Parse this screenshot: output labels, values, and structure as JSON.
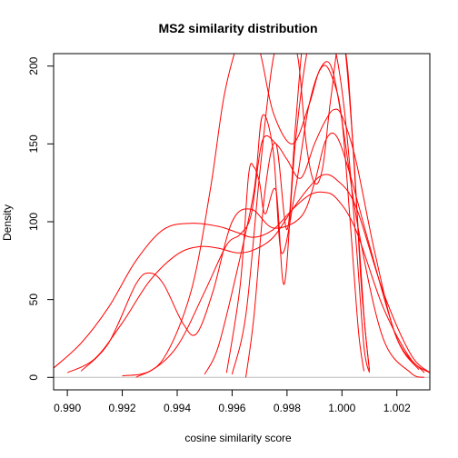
{
  "chart_data": {
    "type": "line",
    "title": "MS2 similarity distribution",
    "xlabel": "cosine similarity score",
    "ylabel": "Density",
    "xlim": [
      0.9895,
      1.0032
    ],
    "ylim": [
      -8,
      208
    ],
    "x_ticks": [
      0.99,
      0.992,
      0.994,
      0.996,
      0.998,
      1.0,
      1.002
    ],
    "x_tick_labels": [
      "0.990",
      "0.992",
      "0.994",
      "0.996",
      "0.998",
      "1.000",
      "1.002"
    ],
    "y_ticks": [
      0,
      50,
      100,
      150,
      200
    ],
    "y_tick_labels": [
      "0",
      "50",
      "100",
      "150",
      "200"
    ],
    "baseline": 0,
    "series_color": "#ff0000",
    "baseline_color": "#bebebe",
    "series": [
      {
        "x": [
          0.9895,
          0.9905,
          0.9915,
          0.9925,
          0.9935,
          0.9945,
          0.9955,
          0.9962,
          0.9968,
          0.9975,
          0.9982,
          0.9988,
          0.9993,
          0.9998,
          1.0005,
          1.0015,
          1.0025,
          1.0032
        ],
        "y": [
          6,
          22,
          45,
          75,
          95,
          99,
          97,
          93,
          90,
          95,
          108,
          117,
          119,
          115,
          95,
          45,
          12,
          3
        ]
      },
      {
        "x": [
          0.99,
          0.991,
          0.992,
          0.993,
          0.994,
          0.9948,
          0.9955,
          0.9962,
          0.9968,
          0.9975,
          0.9982,
          0.9988,
          0.9993,
          0.9998,
          1.0005,
          1.0015,
          1.0025,
          1.0032
        ],
        "y": [
          3,
          12,
          35,
          62,
          79,
          84,
          83,
          80,
          82,
          90,
          108,
          122,
          130,
          127,
          110,
          55,
          15,
          3
        ]
      },
      {
        "x": [
          0.9905,
          0.9915,
          0.9925,
          0.993,
          0.9935,
          0.9942,
          0.9947,
          0.9953,
          0.996,
          0.9967,
          0.9975,
          0.9985,
          0.999,
          0.9994,
          0.9998,
          1.0003,
          1.001,
          1.002,
          1.0028
        ],
        "y": [
          4,
          22,
          60,
          67,
          60,
          35,
          28,
          55,
          100,
          108,
          96,
          103,
          125,
          152,
          155,
          130,
          85,
          25,
          5
        ]
      },
      {
        "x": [
          0.992,
          0.993,
          0.994,
          0.995,
          0.9958,
          0.9963,
          0.9967,
          0.9971,
          0.9976,
          0.998,
          0.9985,
          0.999,
          0.9994,
          0.9997,
          1.0,
          1.0005,
          1.0012,
          1.002,
          1.003
        ],
        "y": [
          1,
          4,
          20,
          55,
          85,
          92,
          105,
          152,
          150,
          140,
          128,
          150,
          165,
          172,
          168,
          140,
          80,
          25,
          3
        ]
      },
      {
        "x": [
          0.9925,
          0.9935,
          0.9945,
          0.9952,
          0.9957,
          0.9962,
          0.9965,
          0.997,
          0.9975,
          0.9982,
          0.9988,
          0.9992,
          0.9996,
          1.0,
          1.0006,
          1.0015,
          1.0025,
          1.003
        ],
        "y": [
          0,
          12,
          55,
          120,
          180,
          215,
          225,
          210,
          170,
          150,
          175,
          198,
          200,
          165,
          95,
          25,
          3,
          0
        ]
      },
      {
        "x": [
          0.995,
          0.9955,
          0.9962,
          0.9968,
          0.9971,
          0.9975,
          0.9978,
          0.9983,
          0.9988,
          0.9993,
          0.9997,
          1.0,
          1.0003,
          1.0006,
          1.0008
        ],
        "y": [
          2,
          20,
          70,
          120,
          168,
          145,
          80,
          120,
          175,
          200,
          190,
          165,
          100,
          30,
          4
        ]
      },
      {
        "x": [
          0.9958,
          0.9963,
          0.9966,
          0.9968,
          0.997,
          0.9972,
          0.9976,
          0.9979,
          0.9983,
          0.9988,
          0.9993,
          0.9997,
          1.0001,
          1.0005,
          1.0008,
          1.001
        ],
        "y": [
          3,
          60,
          130,
          135,
          125,
          105,
          120,
          60,
          150,
          215,
          225,
          215,
          170,
          90,
          20,
          3
        ]
      },
      {
        "x": [
          0.996,
          0.9965,
          0.997,
          0.9975,
          0.998,
          0.9984,
          0.9987,
          0.999,
          0.9993,
          0.9996,
          1.0,
          1.0004,
          1.0007,
          1.001
        ],
        "y": [
          2,
          40,
          130,
          205,
          225,
          205,
          150,
          125,
          135,
          180,
          222,
          150,
          60,
          4
        ]
      },
      {
        "x": [
          0.9965,
          0.9968,
          0.9972,
          0.9976,
          0.998,
          0.9983,
          0.9986,
          0.9989,
          0.9993,
          0.9996,
          0.9999,
          1.0002,
          1.0005,
          1.0008,
          1.001
        ],
        "y": [
          0,
          40,
          120,
          150,
          95,
          160,
          220,
          230,
          225,
          220,
          222,
          200,
          120,
          40,
          5
        ]
      }
    ]
  }
}
